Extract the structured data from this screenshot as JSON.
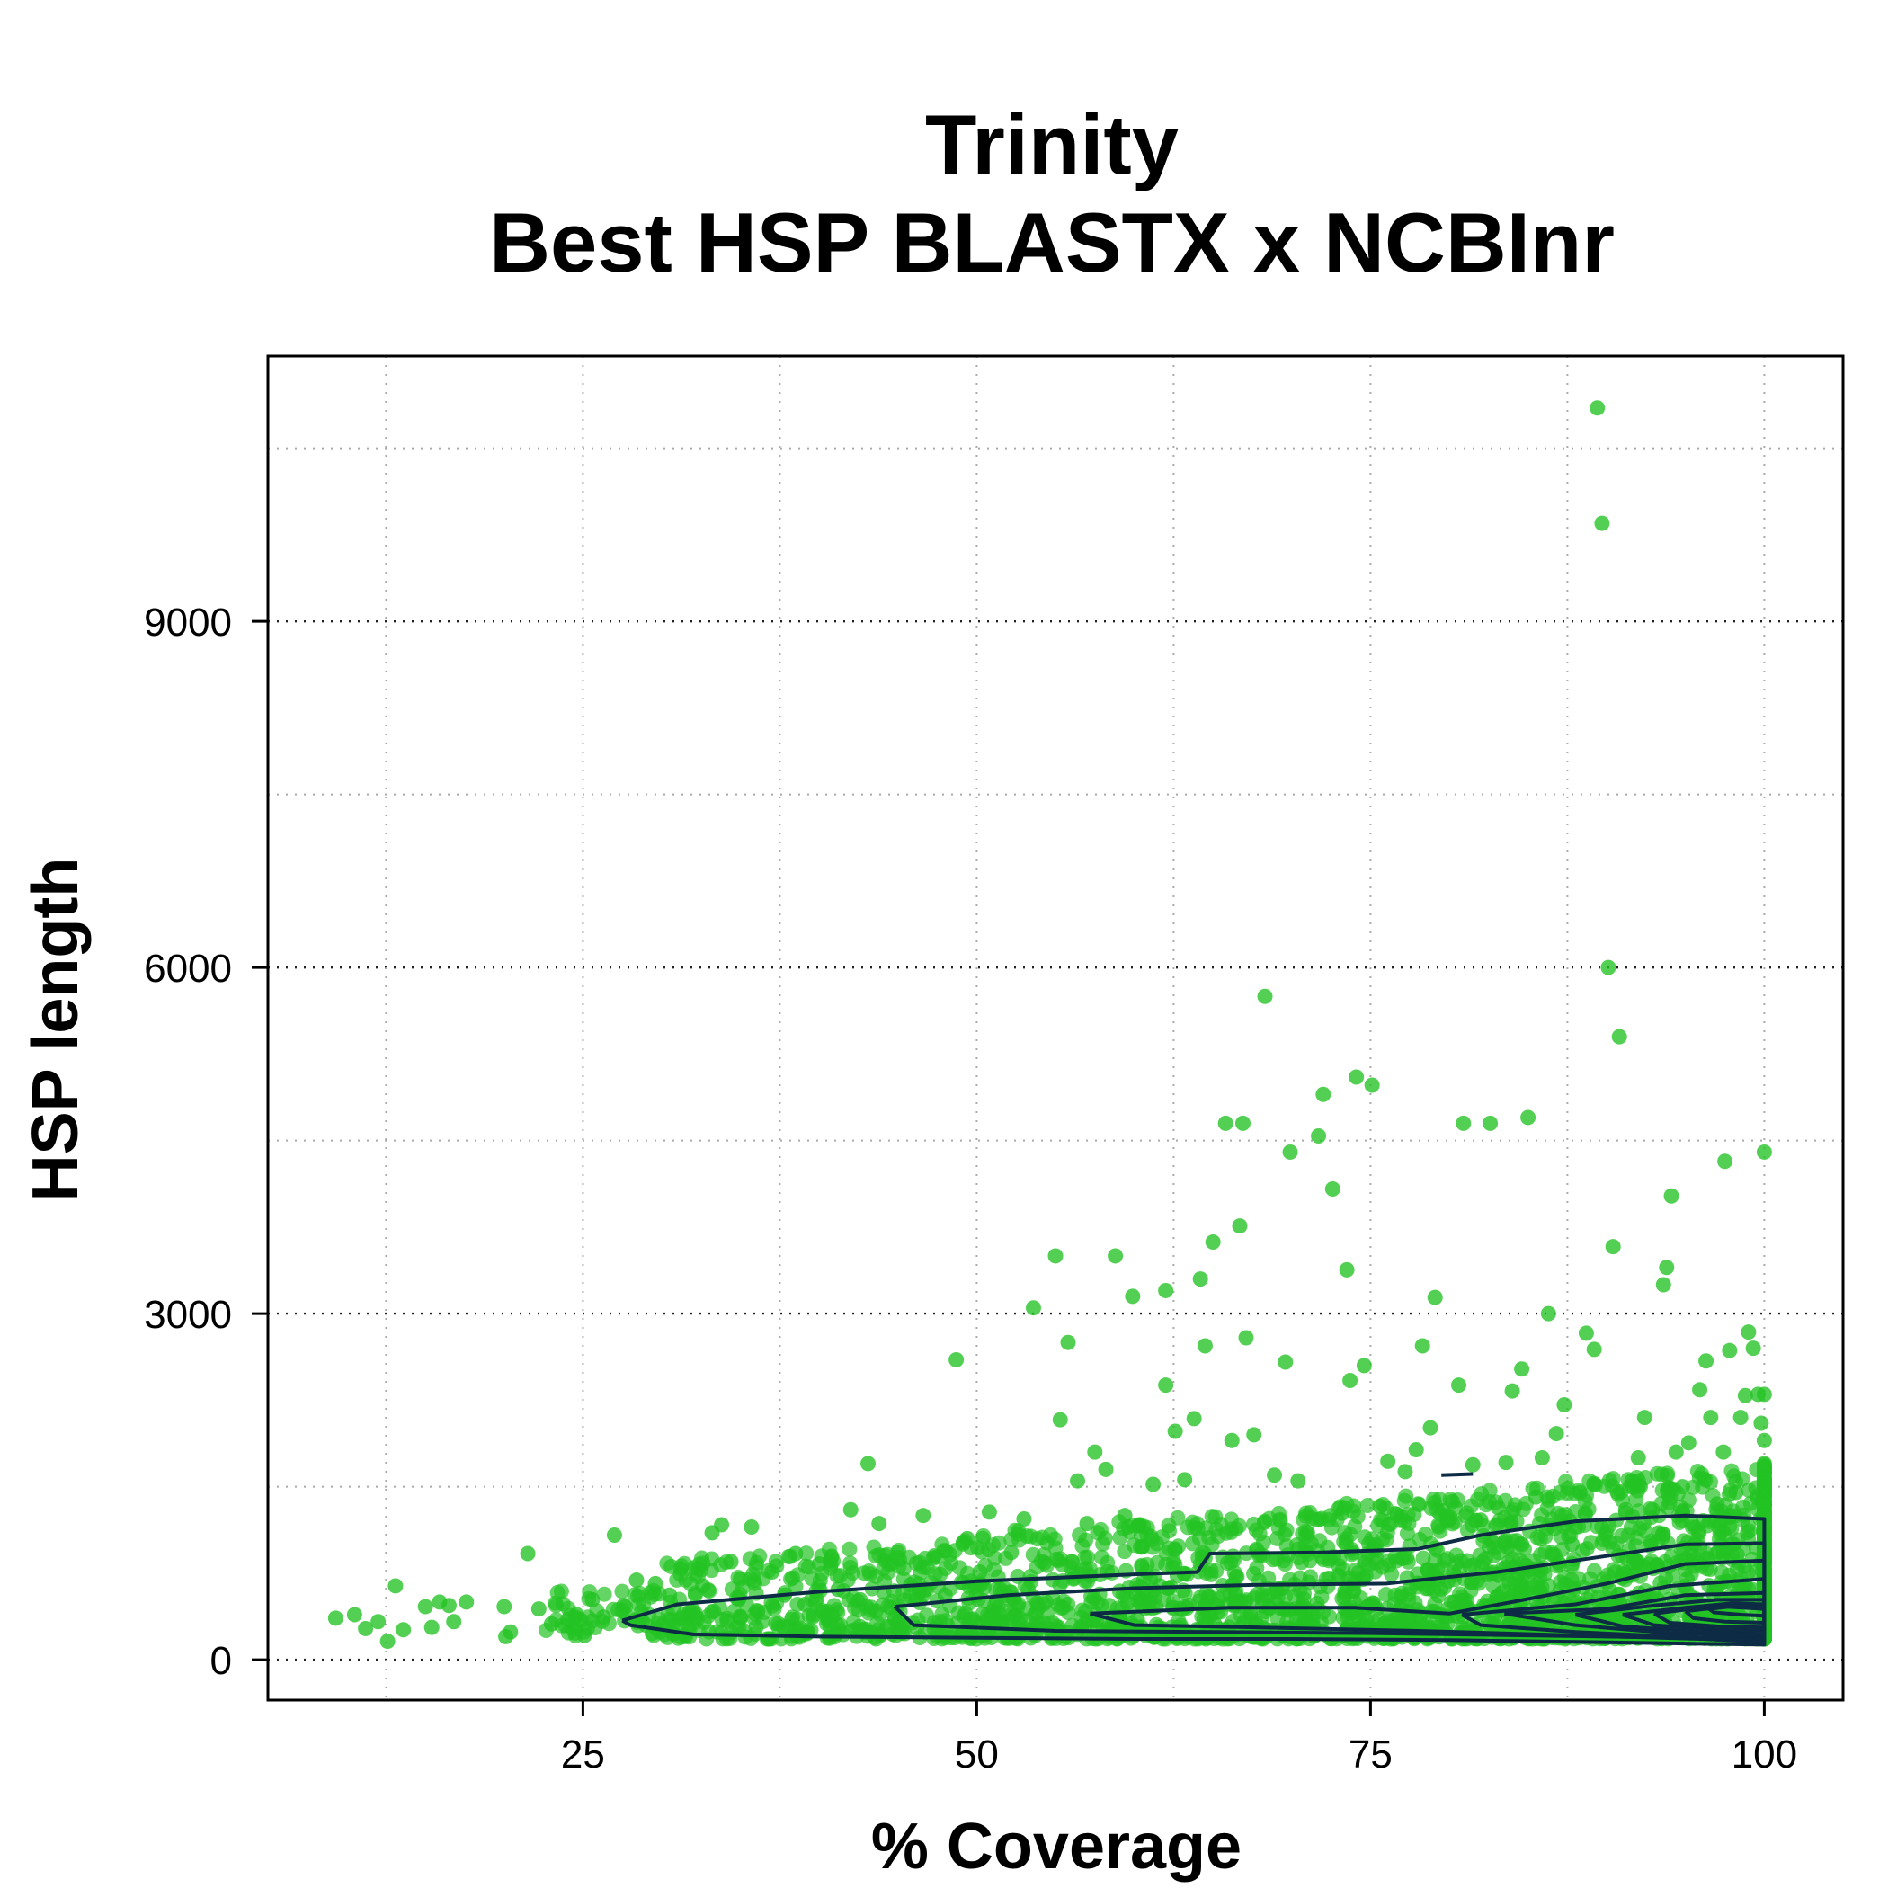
{
  "chart_data": {
    "type": "scatter",
    "title": [
      "Trinity",
      "Best HSP BLASTX x NCBInr"
    ],
    "xlabel": "% Coverage",
    "ylabel": "HSP length",
    "xlim": [
      5,
      105
    ],
    "ylim": [
      -350,
      11300
    ],
    "x_ticks": [
      25,
      50,
      75,
      100
    ],
    "y_ticks": [
      0,
      3000,
      6000,
      9000
    ],
    "x_minor_grid": [
      12.5,
      37.5,
      62.5,
      87.5
    ],
    "y_minor_grid": [
      1500,
      4500,
      7500,
      10500
    ],
    "grid": true,
    "point_color": "#22c322",
    "contour_color": "#0d2b45",
    "series": [
      {
        "values": [
          [
            9.3,
            360
          ],
          [
            10.5,
            390
          ],
          [
            11.2,
            270
          ],
          [
            12.0,
            330
          ],
          [
            12.6,
            160
          ],
          [
            13.1,
            640
          ],
          [
            13.6,
            260
          ],
          [
            15.0,
            460
          ],
          [
            15.4,
            280
          ],
          [
            15.9,
            500
          ],
          [
            16.5,
            470
          ],
          [
            16.8,
            330
          ],
          [
            17.6,
            500
          ],
          [
            20.0,
            460
          ],
          [
            20.1,
            200
          ],
          [
            20.4,
            240
          ],
          [
            21.5,
            920
          ],
          [
            22.2,
            440
          ],
          [
            23.0,
            310
          ],
          [
            24.6,
            390
          ],
          [
            25.1,
            210
          ],
          [
            25.6,
            520
          ],
          [
            26.3,
            370
          ],
          [
            27.0,
            1080
          ],
          [
            27.6,
            470
          ],
          [
            28.4,
            690
          ],
          [
            29.0,
            300
          ],
          [
            29.6,
            660
          ],
          [
            30.5,
            560
          ],
          [
            31.2,
            790
          ],
          [
            31.8,
            420
          ],
          [
            32.6,
            640
          ],
          [
            33.2,
            1100
          ],
          [
            33.8,
            1170
          ],
          [
            34.4,
            850
          ],
          [
            35.0,
            700
          ],
          [
            35.7,
            1150
          ],
          [
            36.1,
            420
          ],
          [
            37.0,
            760
          ],
          [
            37.8,
            560
          ],
          [
            38.5,
            920
          ],
          [
            39.1,
            480
          ],
          [
            40.0,
            830
          ],
          [
            40.6,
            340
          ],
          [
            41.2,
            610
          ],
          [
            42.0,
            1300
          ],
          [
            42.6,
            520
          ],
          [
            43.1,
            1700
          ],
          [
            43.8,
            1180
          ],
          [
            44.2,
            860
          ],
          [
            45.0,
            470
          ],
          [
            45.8,
            650
          ],
          [
            46.6,
            1250
          ],
          [
            47.3,
            900
          ],
          [
            48.0,
            560
          ],
          [
            48.7,
            2600
          ],
          [
            49.4,
            1050
          ],
          [
            50.2,
            760
          ],
          [
            50.8,
            1280
          ],
          [
            51.5,
            610
          ],
          [
            52.2,
            930
          ],
          [
            53.0,
            1220
          ],
          [
            53.6,
            3050
          ],
          [
            54.3,
            840
          ],
          [
            55.0,
            3500
          ],
          [
            55.3,
            2080
          ],
          [
            55.8,
            2750
          ],
          [
            56.4,
            1550
          ],
          [
            57.0,
            1180
          ],
          [
            57.5,
            1800
          ],
          [
            58.2,
            1650
          ],
          [
            58.8,
            3500
          ],
          [
            59.4,
            1250
          ],
          [
            59.9,
            3150
          ],
          [
            60.5,
            980
          ],
          [
            61.2,
            1520
          ],
          [
            62.0,
            2380
          ],
          [
            62.0,
            3200
          ],
          [
            62.6,
            1980
          ],
          [
            63.2,
            1560
          ],
          [
            63.8,
            2090
          ],
          [
            64.2,
            3300
          ],
          [
            64.5,
            2720
          ],
          [
            65.0,
            3620
          ],
          [
            65.8,
            4650
          ],
          [
            66.2,
            1900
          ],
          [
            66.7,
            3760
          ],
          [
            66.9,
            4650
          ],
          [
            67.1,
            2790
          ],
          [
            67.6,
            1950
          ],
          [
            68.3,
            5750
          ],
          [
            68.9,
            1600
          ],
          [
            69.6,
            2580
          ],
          [
            69.9,
            4400
          ],
          [
            70.4,
            1550
          ],
          [
            71.0,
            1100
          ],
          [
            71.7,
            4540
          ],
          [
            72.0,
            4900
          ],
          [
            72.6,
            4080
          ],
          [
            73.2,
            1270
          ],
          [
            73.5,
            3380
          ],
          [
            73.7,
            2420
          ],
          [
            74.1,
            5050
          ],
          [
            74.6,
            2550
          ],
          [
            75.1,
            4980
          ],
          [
            75.6,
            1330
          ],
          [
            76.1,
            1720
          ],
          [
            76.7,
            1260
          ],
          [
            77.2,
            1630
          ],
          [
            77.9,
            1820
          ],
          [
            78.3,
            2720
          ],
          [
            78.8,
            2010
          ],
          [
            79.1,
            3140
          ],
          [
            79.6,
            1290
          ],
          [
            80.2,
            1370
          ],
          [
            80.6,
            2380
          ],
          [
            80.9,
            4650
          ],
          [
            81.5,
            1690
          ],
          [
            82.0,
            1210
          ],
          [
            82.6,
            4650
          ],
          [
            83.1,
            1320
          ],
          [
            83.6,
            1710
          ],
          [
            84.0,
            2330
          ],
          [
            84.6,
            2520
          ],
          [
            85.0,
            4700
          ],
          [
            85.5,
            1410
          ],
          [
            85.9,
            1750
          ],
          [
            86.3,
            3000
          ],
          [
            86.8,
            1960
          ],
          [
            87.3,
            2210
          ],
          [
            87.8,
            1000
          ],
          [
            88.3,
            1450
          ],
          [
            88.7,
            2830
          ],
          [
            89.2,
            2690
          ],
          [
            89.4,
            10850
          ],
          [
            89.7,
            9850
          ],
          [
            90.1,
            6000
          ],
          [
            90.4,
            3580
          ],
          [
            90.8,
            5400
          ],
          [
            91.2,
            1300
          ],
          [
            91.6,
            1550
          ],
          [
            92.0,
            1750
          ],
          [
            92.4,
            2100
          ],
          [
            92.9,
            1300
          ],
          [
            93.3,
            1100
          ],
          [
            93.6,
            3250
          ],
          [
            93.8,
            3400
          ],
          [
            94.1,
            4020
          ],
          [
            94.4,
            1800
          ],
          [
            94.8,
            1500
          ],
          [
            95.2,
            1880
          ],
          [
            95.6,
            1000
          ],
          [
            95.9,
            2340
          ],
          [
            96.3,
            2590
          ],
          [
            96.6,
            2100
          ],
          [
            97.0,
            1350
          ],
          [
            97.4,
            1800
          ],
          [
            97.5,
            4320
          ],
          [
            97.8,
            2680
          ],
          [
            98.2,
            1450
          ],
          [
            98.5,
            2100
          ],
          [
            98.8,
            2290
          ],
          [
            99.0,
            2840
          ],
          [
            99.3,
            2700
          ],
          [
            99.6,
            2300
          ],
          [
            99.8,
            2050
          ],
          [
            100.0,
            4400
          ],
          [
            100.0,
            2300
          ],
          [
            100.0,
            1900
          ],
          [
            100.0,
            1700
          ],
          [
            100.0,
            1450
          ],
          [
            100.0,
            1250
          ],
          [
            100.0,
            1100
          ],
          [
            40.5,
            380
          ],
          [
            51.0,
            420
          ],
          [
            60.2,
            350
          ],
          [
            70.6,
            450
          ],
          [
            80.3,
            500
          ],
          [
            90.2,
            600
          ],
          [
            95.1,
            700
          ],
          [
            99.0,
            520
          ],
          [
            45.3,
            300
          ],
          [
            55.2,
            280
          ],
          [
            65.1,
            310
          ],
          [
            75.2,
            260
          ],
          [
            85.1,
            300
          ],
          [
            97.2,
            260
          ],
          [
            100.0,
            250
          ],
          [
            100.0,
            400
          ]
        ]
      }
    ],
    "contours": [
      [
        [
          27.5,
          340
        ],
        [
          31,
          480
        ],
        [
          40,
          590
        ],
        [
          50,
          680
        ],
        [
          60,
          740
        ],
        [
          64,
          760
        ],
        [
          64.8,
          920
        ],
        [
          72,
          930
        ],
        [
          78,
          960
        ],
        [
          82,
          1080
        ],
        [
          88,
          1200
        ],
        [
          95,
          1250
        ],
        [
          100,
          1220
        ],
        [
          100,
          130
        ],
        [
          90,
          150
        ],
        [
          80,
          170
        ],
        [
          70,
          180
        ],
        [
          60,
          180
        ],
        [
          50,
          190
        ],
        [
          40,
          200
        ],
        [
          32,
          220
        ],
        [
          28,
          300
        ],
        [
          27.5,
          340
        ]
      ],
      [
        [
          44.8,
          460
        ],
        [
          52,
          560
        ],
        [
          60,
          620
        ],
        [
          68,
          650
        ],
        [
          76,
          660
        ],
        [
          83,
          760
        ],
        [
          89,
          880
        ],
        [
          95,
          1000
        ],
        [
          100,
          1010
        ],
        [
          100,
          150
        ],
        [
          95,
          190
        ],
        [
          85,
          210
        ],
        [
          75,
          230
        ],
        [
          65,
          240
        ],
        [
          55,
          250
        ],
        [
          46,
          300
        ],
        [
          44.8,
          460
        ]
      ],
      [
        [
          57.2,
          400
        ],
        [
          66,
          450
        ],
        [
          74,
          450
        ],
        [
          80,
          400
        ],
        [
          84,
          500
        ],
        [
          90,
          660
        ],
        [
          95,
          830
        ],
        [
          100,
          860
        ],
        [
          100,
          160
        ],
        [
          96,
          180
        ],
        [
          88,
          210
        ],
        [
          78,
          250
        ],
        [
          68,
          280
        ],
        [
          60,
          300
        ],
        [
          57.2,
          400
        ]
      ],
      [
        [
          80.8,
          390
        ],
        [
          88,
          480
        ],
        [
          94,
          640
        ],
        [
          100,
          700
        ],
        [
          100,
          180
        ],
        [
          96,
          190
        ],
        [
          88,
          240
        ],
        [
          82,
          300
        ],
        [
          80.8,
          390
        ]
      ],
      [
        [
          83.5,
          400
        ],
        [
          90,
          440
        ],
        [
          95,
          560
        ],
        [
          100,
          580
        ],
        [
          100,
          200
        ],
        [
          94,
          230
        ],
        [
          88,
          300
        ],
        [
          83.5,
          400
        ]
      ],
      [
        [
          88,
          390
        ],
        [
          93,
          470
        ],
        [
          97,
          520
        ],
        [
          100,
          520
        ],
        [
          100,
          220
        ],
        [
          96,
          240
        ],
        [
          91,
          290
        ],
        [
          88,
          390
        ]
      ],
      [
        [
          91,
          390
        ],
        [
          95,
          450
        ],
        [
          98,
          490
        ],
        [
          100,
          480
        ],
        [
          100,
          250
        ],
        [
          97,
          260
        ],
        [
          93,
          300
        ],
        [
          91,
          390
        ]
      ],
      [
        [
          93,
          400
        ],
        [
          96,
          450
        ],
        [
          99,
          470
        ],
        [
          100,
          450
        ],
        [
          100,
          280
        ],
        [
          97,
          290
        ],
        [
          94,
          320
        ],
        [
          93,
          400
        ]
      ],
      [
        [
          95,
          420
        ],
        [
          97.5,
          460
        ],
        [
          100,
          440
        ],
        [
          100,
          320
        ],
        [
          97.5,
          330
        ],
        [
          95.5,
          360
        ],
        [
          95,
          420
        ]
      ],
      [
        [
          96.5,
          440
        ],
        [
          98.5,
          470
        ],
        [
          100,
          450
        ],
        [
          100,
          380
        ],
        [
          98.5,
          390
        ],
        [
          96.8,
          410
        ],
        [
          96.5,
          440
        ]
      ],
      [
        [
          79.5,
          1600
        ],
        [
          81.5,
          1610
        ]
      ]
    ]
  }
}
